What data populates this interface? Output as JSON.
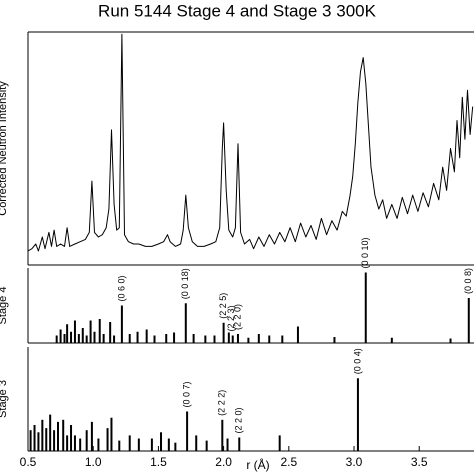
{
  "chart_data": [
    {
      "type": "line",
      "title": "Run 5144 Stage 4 and Stage 3 300K",
      "ylabel": "Corrected Neutron Intensity",
      "color": "#000000",
      "xlim": [
        0.5,
        3.92
      ],
      "ylim": [
        0,
        10
      ],
      "x": [
        0.5,
        0.53,
        0.56,
        0.58,
        0.61,
        0.63,
        0.66,
        0.68,
        0.7,
        0.72,
        0.75,
        0.78,
        0.8,
        0.82,
        0.86,
        0.9,
        0.94,
        0.97,
        0.99,
        1.01,
        1.04,
        1.07,
        1.1,
        1.12,
        1.14,
        1.16,
        1.18,
        1.2,
        1.22,
        1.24,
        1.27,
        1.31,
        1.35,
        1.4,
        1.45,
        1.5,
        1.54,
        1.57,
        1.59,
        1.63,
        1.67,
        1.69,
        1.71,
        1.73,
        1.76,
        1.8,
        1.85,
        1.9,
        1.94,
        1.97,
        1.99,
        2.0,
        2.02,
        2.04,
        2.07,
        2.09,
        2.11,
        2.13,
        2.16,
        2.2,
        2.23,
        2.27,
        2.31,
        2.35,
        2.39,
        2.43,
        2.47,
        2.51,
        2.55,
        2.59,
        2.63,
        2.67,
        2.71,
        2.75,
        2.79,
        2.83,
        2.87,
        2.91,
        2.94,
        2.97,
        2.99,
        3.01,
        3.03,
        3.05,
        3.07,
        3.09,
        3.11,
        3.13,
        3.16,
        3.19,
        3.22,
        3.25,
        3.29,
        3.33,
        3.37,
        3.41,
        3.45,
        3.49,
        3.53,
        3.57,
        3.61,
        3.65,
        3.68,
        3.71,
        3.74,
        3.77,
        3.79,
        3.81,
        3.83,
        3.85,
        3.87,
        3.89,
        3.91
      ],
      "values": [
        0.6,
        0.7,
        0.9,
        0.6,
        1.2,
        0.7,
        1.4,
        0.8,
        1.5,
        0.8,
        0.9,
        0.8,
        1.6,
        0.8,
        0.9,
        1.0,
        1.1,
        1.4,
        3.6,
        1.4,
        1.2,
        1.3,
        1.6,
        2.4,
        5.8,
        2.6,
        1.5,
        1.6,
        9.9,
        1.3,
        1.0,
        0.9,
        0.9,
        0.8,
        0.8,
        0.9,
        1.0,
        1.3,
        1.0,
        0.8,
        0.9,
        1.5,
        3.0,
        1.6,
        1.0,
        0.8,
        0.8,
        0.9,
        1.0,
        1.6,
        5.0,
        6.1,
        3.2,
        1.5,
        1.2,
        1.6,
        5.2,
        1.4,
        0.9,
        1.1,
        0.7,
        1.2,
        0.8,
        1.3,
        0.9,
        1.4,
        1.0,
        1.6,
        1.0,
        1.8,
        1.2,
        1.7,
        1.1,
        2.0,
        1.3,
        1.9,
        1.5,
        2.3,
        2.1,
        3.0,
        3.8,
        5.2,
        7.0,
        8.3,
        8.9,
        7.8,
        6.0,
        4.2,
        3.0,
        2.4,
        2.8,
        2.0,
        2.6,
        2.0,
        2.9,
        2.2,
        3.0,
        2.3,
        3.1,
        2.5,
        3.5,
        2.8,
        4.2,
        3.2,
        5.0,
        4.0,
        6.2,
        4.6,
        7.2,
        5.4,
        7.5,
        5.6,
        6.8
      ]
    },
    {
      "type": "stick",
      "ylabel": "Stage 4",
      "color": "#000000",
      "xlim": [
        0.5,
        3.92
      ],
      "ylim": [
        0,
        1
      ],
      "x": [
        0.72,
        0.75,
        0.78,
        0.8,
        0.83,
        0.86,
        0.89,
        0.92,
        0.95,
        0.98,
        1.01,
        1.05,
        1.08,
        1.13,
        1.16,
        1.22,
        1.28,
        1.34,
        1.41,
        1.47,
        1.56,
        1.62,
        1.71,
        1.77,
        1.86,
        1.93,
        2.0,
        2.04,
        2.07,
        2.11,
        2.19,
        2.27,
        2.35,
        2.45,
        2.57,
        2.85,
        3.09,
        3.29,
        3.74,
        3.88
      ],
      "values": [
        0.1,
        0.18,
        0.12,
        0.25,
        0.15,
        0.3,
        0.12,
        0.2,
        0.1,
        0.3,
        0.15,
        0.32,
        0.12,
        0.28,
        0.1,
        0.5,
        0.12,
        0.15,
        0.18,
        0.1,
        0.12,
        0.14,
        0.53,
        0.12,
        0.1,
        0.1,
        0.27,
        0.14,
        0.1,
        0.12,
        0.07,
        0.12,
        0.1,
        0.1,
        0.22,
        0.08,
        0.94,
        0.07,
        0.06,
        0.6
      ],
      "annotations": [
        {
          "text": "(0 6 0)",
          "x": 1.22
        },
        {
          "text": "(0 0 18)",
          "x": 1.71
        },
        {
          "text": "(2 2 5)",
          "x": 2.0
        },
        {
          "text": "(2 2 3)",
          "x": 2.06
        },
        {
          "text": "(2 2 0)",
          "x": 2.11
        },
        {
          "text": "(0 0 10)",
          "x": 3.09
        },
        {
          "text": "(0 0 8)",
          "x": 3.88
        }
      ]
    },
    {
      "type": "stick",
      "ylabel": "Stage 3",
      "xlabel": "r (Å)",
      "color": "#000000",
      "xlim": [
        0.5,
        3.92
      ],
      "ylim": [
        0,
        1
      ],
      "xticks": [
        0.5,
        {
          "value": 1,
          "label": "1.0"
        },
        1.5,
        {
          "value": 2,
          "label": "2.0"
        },
        2.5,
        {
          "value": 3,
          "label": "3.0"
        },
        3.5
      ],
      "x": [
        0.52,
        0.55,
        0.58,
        0.61,
        0.64,
        0.67,
        0.7,
        0.73,
        0.77,
        0.8,
        0.83,
        0.86,
        0.9,
        0.95,
        0.99,
        1.04,
        1.11,
        1.14,
        1.2,
        1.28,
        1.35,
        1.45,
        1.52,
        1.58,
        1.63,
        1.72,
        1.79,
        1.87,
        1.99,
        2.03,
        2.12,
        2.43,
        3.03
      ],
      "values": [
        0.2,
        0.25,
        0.18,
        0.3,
        0.22,
        0.35,
        0.2,
        0.28,
        0.3,
        0.15,
        0.25,
        0.15,
        0.12,
        0.2,
        0.28,
        0.12,
        0.22,
        0.32,
        0.1,
        0.15,
        0.12,
        0.12,
        0.18,
        0.12,
        0.08,
        0.38,
        0.15,
        0.1,
        0.3,
        0.12,
        0.13,
        0.15,
        0.7
      ],
      "annotations": [
        {
          "text": "(0 0 7)",
          "x": 1.72
        },
        {
          "text": "(2 2 2)",
          "x": 1.99
        },
        {
          "text": "(2 2 0)",
          "x": 2.12
        },
        {
          "text": "(0 0 4)",
          "x": 3.03
        }
      ]
    }
  ]
}
